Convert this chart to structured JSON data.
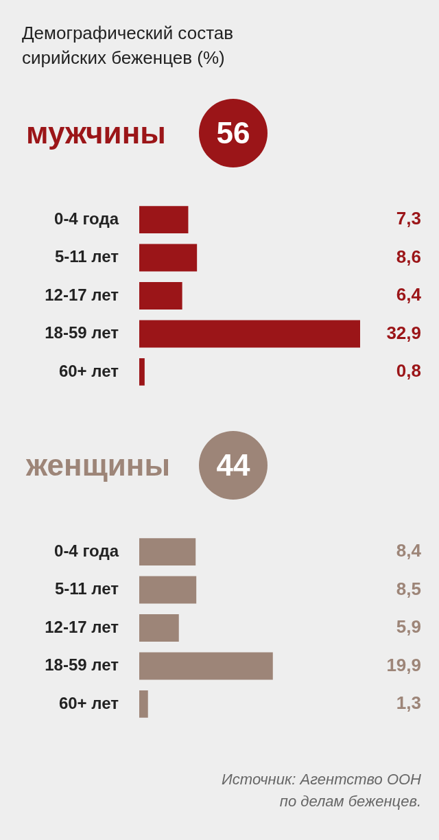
{
  "chart_data": [
    {
      "type": "bar",
      "orientation": "horizontal",
      "title": "Демографический состав сирийских беженцев (%)",
      "subtitle": "мужчины",
      "annotations": [
        "56"
      ],
      "categories": [
        "0-4 года",
        "5-11 лет",
        "12-17 лет",
        "18-59 лет",
        "60+ лет"
      ],
      "color": "#9b1518",
      "values": [
        7.3,
        8.6,
        6.4,
        32.9,
        0.8
      ],
      "value_labels": [
        "7,3",
        "8,6",
        "6,4",
        "32,9",
        "0,8"
      ]
    },
    {
      "type": "bar",
      "orientation": "horizontal",
      "subtitle": "женщины",
      "annotations": [
        "44",
        "Источник: Агентство ООН\nпо делам беженцев."
      ],
      "categories": [
        "0-4 года",
        "5-11 лет",
        "12-17 лет",
        "18-59 лет",
        "60+ лет"
      ],
      "color": "#9d8578",
      "values": [
        8.4,
        8.5,
        5.9,
        19.9,
        1.3
      ],
      "value_labels": [
        "8,4",
        "8,5",
        "5,9",
        "19,9",
        "1,3"
      ]
    }
  ]
}
